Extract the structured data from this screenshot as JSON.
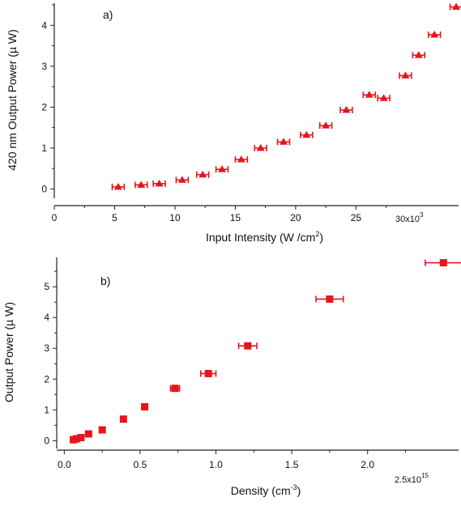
{
  "chart_data": [
    {
      "type": "scatter",
      "panel_label": "a)",
      "xlabel": "Input Intensity (W /cm",
      "xlabel_sup": "2",
      "xlabel_end": ")",
      "ylabel": "420 nm Output Power (µ W)",
      "xlim": [
        0,
        33500
      ],
      "ylim": [
        -0.15,
        4.5
      ],
      "xticks": [
        0,
        5000,
        10000,
        15000,
        20000,
        25000
      ],
      "xtick_labels": [
        "0",
        "5",
        "10",
        "15",
        "20",
        "25"
      ],
      "x_multiplier_label": "30x10",
      "x_multiplier_sup": "3",
      "yticks": [
        0,
        1,
        2,
        3,
        4
      ],
      "ytick_labels": [
        "0",
        "1",
        "2",
        "3",
        "4"
      ],
      "marker": "triangle",
      "color": "#e8141c",
      "series": [
        {
          "x": [
            5300,
            7200,
            8700,
            10600,
            12300,
            13900,
            15500,
            17100,
            19000,
            20900,
            22500,
            24200,
            26100,
            27300,
            29100,
            30200,
            31500,
            33300
          ],
          "y": [
            0.05,
            0.1,
            0.13,
            0.22,
            0.35,
            0.48,
            0.72,
            1.0,
            1.15,
            1.32,
            1.55,
            1.93,
            2.3,
            2.22,
            2.77,
            3.27,
            3.77,
            4.45
          ],
          "x_err": [
            500,
            500,
            500,
            500,
            500,
            500,
            500,
            500,
            500,
            500,
            500,
            500,
            500,
            500,
            500,
            500,
            500,
            500
          ]
        }
      ]
    },
    {
      "type": "scatter",
      "panel_label": "b)",
      "xlabel": "Density (cm",
      "xlabel_sup": "-3",
      "xlabel_end": ")",
      "ylabel": "Output Power (µ W)",
      "xlim": [
        -0.05,
        2.6
      ],
      "ylim": [
        -0.15,
        5.9
      ],
      "xticks": [
        0.0,
        0.5,
        1.0,
        1.5,
        2.0
      ],
      "xtick_labels": [
        "0.0",
        "0.5",
        "1.0",
        "1.5",
        "2.0"
      ],
      "x_multiplier_label": "2.5x10",
      "x_multiplier_sup": "15",
      "yticks": [
        0,
        1,
        2,
        3,
        4,
        5
      ],
      "ytick_labels": [
        "0",
        "1",
        "2",
        "3",
        "4",
        "5"
      ],
      "marker": "square",
      "color": "#e8141c",
      "series": [
        {
          "x": [
            0.06,
            0.08,
            0.11,
            0.16,
            0.25,
            0.39,
            0.53,
            0.73,
            0.95,
            1.21,
            1.75,
            2.5
          ],
          "y": [
            0.03,
            0.06,
            0.1,
            0.22,
            0.35,
            0.7,
            1.1,
            1.7,
            2.18,
            3.08,
            4.6,
            5.78
          ],
          "x_err": [
            0.0,
            0.0,
            0.0,
            0.0,
            0.0,
            0.0,
            0.0,
            0.03,
            0.05,
            0.06,
            0.09,
            0.12
          ]
        }
      ]
    }
  ]
}
